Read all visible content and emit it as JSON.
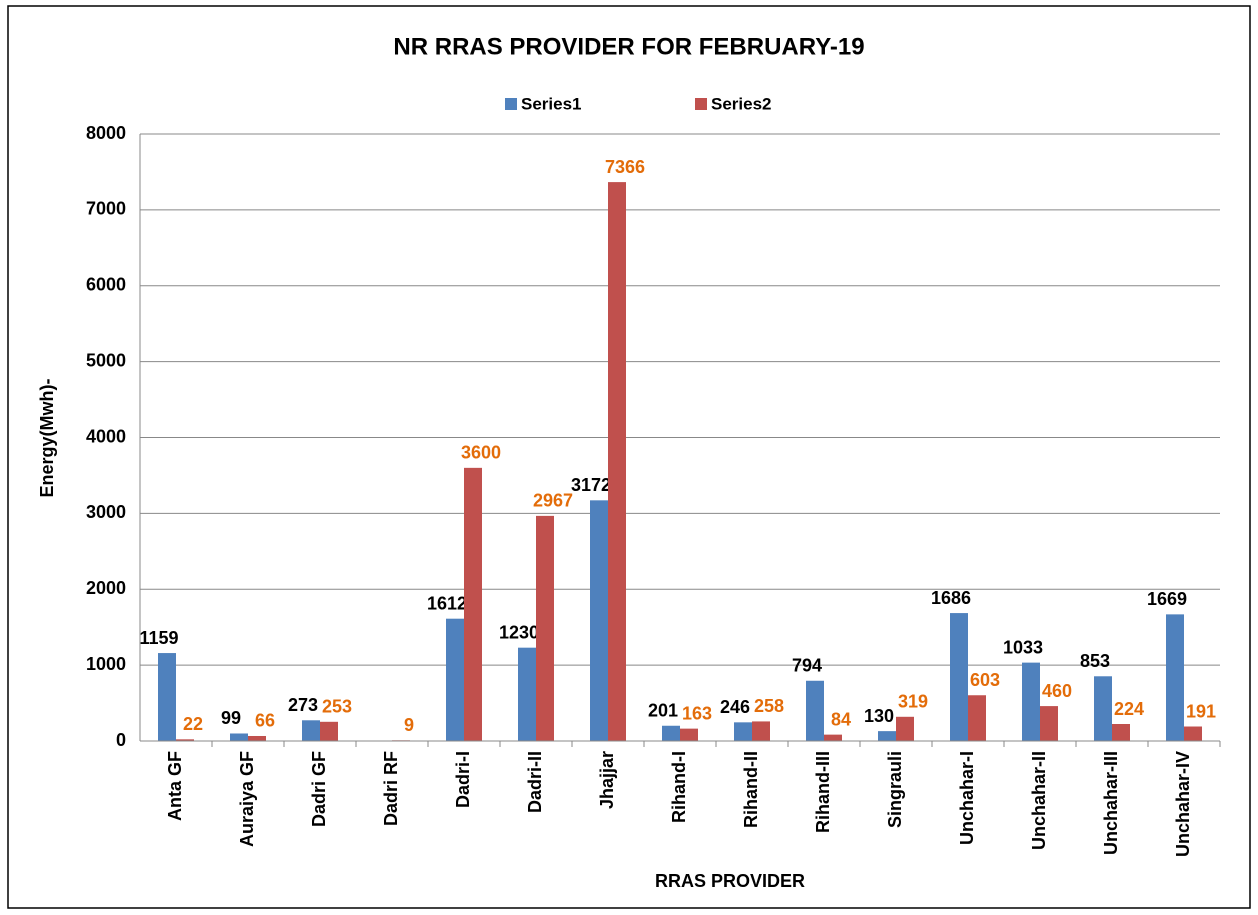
{
  "chart_data": {
    "type": "bar",
    "title": "NR RRAS PROVIDER FOR FEBRUARY-19",
    "x_label": "RRAS PROVIDER",
    "y_label": "Energy(Mwh)-",
    "categories": [
      "Anta GF",
      "Auraiya GF",
      "Dadri GF",
      "Dadri RF",
      "Dadri-I",
      "Dadri-II",
      "Jhajjar",
      "Rihand-I",
      "Rihand-II",
      "Rihand-III",
      "Singrauli",
      "Unchahar-I",
      "Unchahar-II",
      "Unchahar-III",
      "Unchahar-IV"
    ],
    "series": [
      {
        "name": "Series1",
        "color": "#4f81bd",
        "label_color": "#000000",
        "values": [
          1159,
          99,
          273,
          null,
          1612,
          1230,
          3172,
          201,
          246,
          794,
          130,
          1686,
          1033,
          853,
          1669
        ]
      },
      {
        "name": "Series2",
        "color": "#c0504d",
        "label_color": "#e36c09",
        "values": [
          22,
          66,
          253,
          9,
          3600,
          2967,
          7366,
          163,
          258,
          84,
          319,
          603,
          460,
          224,
          191
        ]
      }
    ],
    "ylim": [
      0,
      8000
    ],
    "yticks": [
      0,
      1000,
      2000,
      3000,
      4000,
      5000,
      6000,
      7000,
      8000
    ],
    "grid": true,
    "legend": "top"
  }
}
